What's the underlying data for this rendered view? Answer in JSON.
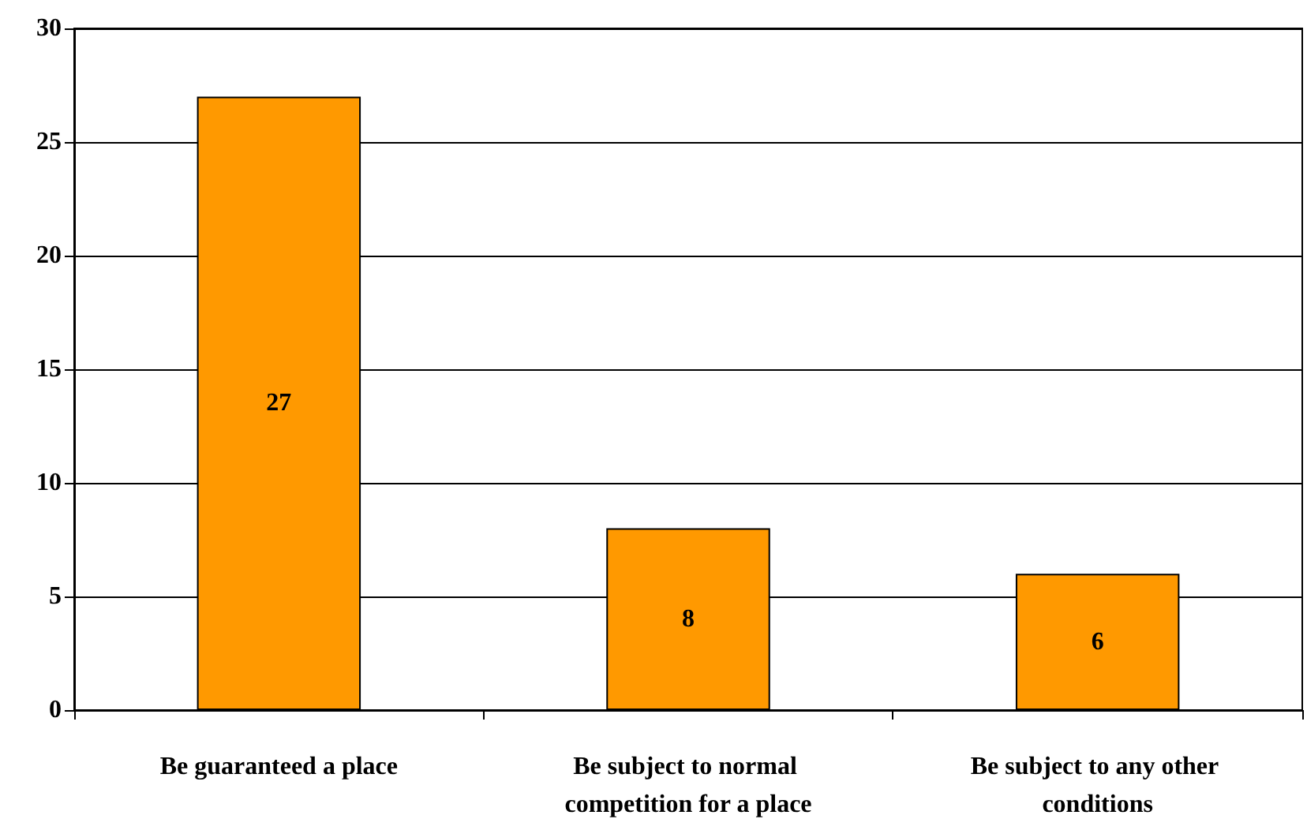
{
  "chart_data": {
    "type": "bar",
    "categories": [
      "Be guaranteed a place",
      "Be subject to normal competition for a place",
      "Be subject to any other conditions"
    ],
    "values": [
      27,
      8,
      6
    ],
    "color": "#ff9900",
    "ylim": [
      0,
      30
    ],
    "yticks": [
      0,
      5,
      10,
      15,
      20,
      25,
      30
    ],
    "grid": "y",
    "data_labels": true
  }
}
